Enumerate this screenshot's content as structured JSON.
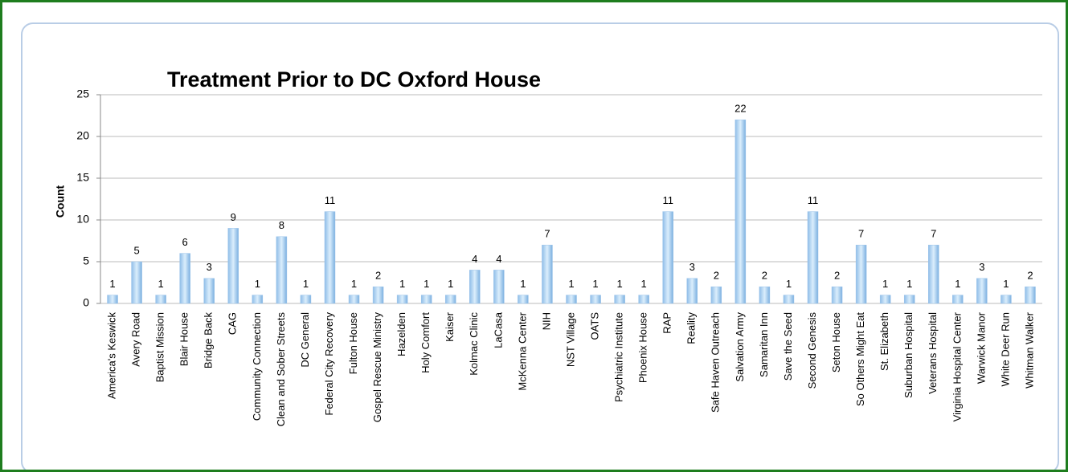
{
  "chart_data": {
    "type": "bar",
    "title": "Treatment Prior to DC Oxford House",
    "y_label": "Count",
    "categories": [
      "America's Keswick",
      "Avery Road",
      "Baptist Mission",
      "Blair House",
      "Bridge Back",
      "CAG",
      "Community Connection",
      "Clean and Sober Streets",
      "DC General",
      "Federal City Recovery",
      "Fulton House",
      "Gospel Rescue Ministry",
      "Hazelden",
      "Holy Comfort",
      "Kaiser",
      "Kolmac Clinic",
      "LaCasa",
      "McKenna Center",
      "NIH",
      "NST Village",
      "OATS",
      "Psychiatric Institute",
      "Phoenix House",
      "RAP",
      "Reality",
      "Safe Haven Outreach",
      "Salvation Army",
      "Samaritan Inn",
      "Save the Seed",
      "Second Genesis",
      "Seton House",
      "So Others Might Eat",
      "St. Elizabeth",
      "Suburban Hospital",
      "Veterans Hospital",
      "Virginia Hospital Center",
      "Warwick Manor",
      "White Deer Run",
      "Whitman Walker"
    ],
    "values": [
      1,
      5,
      1,
      6,
      3,
      9,
      1,
      8,
      1,
      11,
      1,
      2,
      1,
      1,
      1,
      4,
      4,
      1,
      7,
      1,
      1,
      1,
      1,
      11,
      3,
      2,
      22,
      2,
      1,
      11,
      2,
      7,
      1,
      1,
      7,
      1,
      3,
      1,
      2
    ],
    "color": "#8fbde8",
    "ylim": [
      0,
      25
    ],
    "yticks": [
      0,
      5,
      10,
      15,
      20,
      25
    ],
    "grid": true
  }
}
